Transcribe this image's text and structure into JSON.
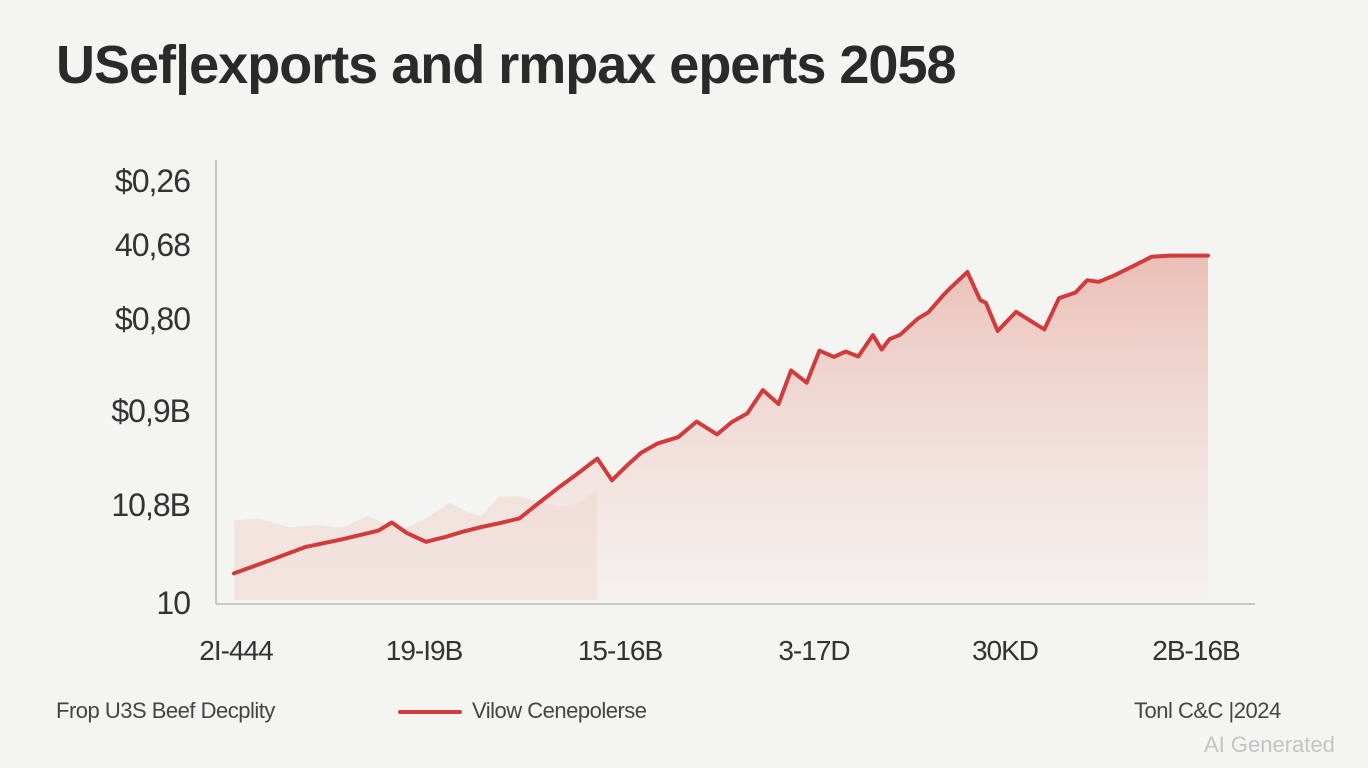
{
  "title": "USef|exports and rmpax eperts 2058",
  "chart_data": {
    "type": "area",
    "title": "USef|exports and rmpax eperts 2058",
    "y_tick_labels": [
      "$0,26",
      "40,68",
      "$0,80",
      "$0,9B",
      "10,8B",
      "10"
    ],
    "x_tick_labels": [
      "2I-444",
      "19-I9B",
      "15-16B",
      "3-17D",
      "30KD",
      "2B-16B"
    ],
    "xlim": [
      0,
      100
    ],
    "ylim": [
      0,
      100
    ],
    "series": [
      {
        "name": "Vilow Cenepolerse",
        "color": "#d23b3b",
        "x": [
          0,
          3.5,
          7.3,
          11.1,
          14.8,
          16.2,
          17.7,
          19.7,
          21.7,
          23.4,
          25.4,
          27.2,
          29.3,
          31.1,
          33.2,
          35.1,
          37.3,
          38.8,
          40.3,
          41.8,
          43.5,
          45.6,
          47.5,
          49.6,
          51.1,
          52.7,
          54.3,
          55.9,
          57.2,
          58.8,
          60.1,
          61.6,
          62.8,
          64.1,
          65.6,
          66.5,
          67.3,
          68.4,
          70.2,
          71.3,
          72.8,
          73.5,
          75.3,
          76.6,
          77.2,
          78.4,
          80.3,
          81.9,
          83.2,
          84.7,
          86.4,
          87.6,
          88.8,
          90.4,
          92.2,
          94.2,
          96.1,
          100
        ],
        "y": [
          6.5,
          9.5,
          12.9,
          14.8,
          16.9,
          18.9,
          16.4,
          14.2,
          15.4,
          16.6,
          17.8,
          18.7,
          19.9,
          23.3,
          27.2,
          30.5,
          34.5,
          29.2,
          32.7,
          35.9,
          38.2,
          39.7,
          43.5,
          40.4,
          43.4,
          45.5,
          51.2,
          47.8,
          56.0,
          53.0,
          60.8,
          59.3,
          60.6,
          59.4,
          64.6,
          61.1,
          63.6,
          64.7,
          68.6,
          70.2,
          74.3,
          76.0,
          80.0,
          73.2,
          72.5,
          65.6,
          70.3,
          67.9,
          66.0,
          73.6,
          75.0,
          78.0,
          77.6,
          79.2,
          81.3,
          83.7,
          84.0,
          84.0
        ]
      },
      {
        "name": "background band",
        "color": "#efdcd8",
        "x": [
          0,
          2.5,
          5.6,
          8.5,
          11.1,
          13.7,
          15.6,
          17.7,
          19.7,
          22.1,
          24.1,
          25.4,
          27.2,
          29.3,
          31.1,
          33.3,
          35.0,
          37.3
        ],
        "y": [
          19.4,
          19.9,
          17.7,
          18.3,
          17.6,
          20.5,
          18.5,
          17.6,
          19.9,
          23.7,
          21.3,
          20.5,
          25.2,
          25.3,
          24.1,
          22.8,
          23.1,
          27.0
        ]
      }
    ],
    "legend_entries": [
      "Frop U3S Beef Decplity",
      "Vilow Cenepolerse"
    ],
    "source": "Tonl C&C |2024",
    "grid": false,
    "legend_position": "bottom"
  },
  "legend": {
    "left_label": "Frop U3S Beef Decplity",
    "series_label": "Vilow Cenepolerse"
  },
  "source": "Tonl C&C |2024",
  "watermark": "AI Generated",
  "colors": {
    "line": "#d23b3b",
    "axis": "#c8c8c8",
    "area_fill": "#e9b6ac",
    "background": "#f4f4f2"
  }
}
